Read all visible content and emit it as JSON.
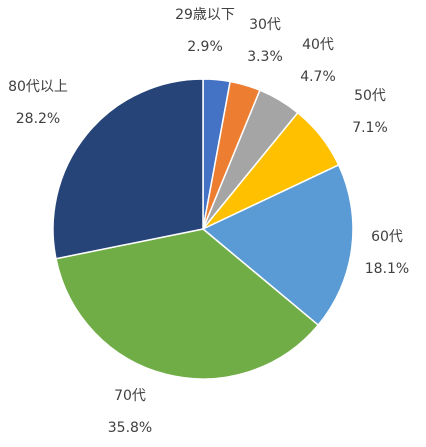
{
  "chart_data": {
    "type": "pie",
    "categories": [
      "29歳以下",
      "30代",
      "40代",
      "50代",
      "60代",
      "70代",
      "80代以上"
    ],
    "values": [
      2.9,
      3.3,
      4.7,
      7.1,
      18.1,
      35.8,
      28.2
    ],
    "value_labels": [
      "2.9%",
      "3.3%",
      "4.7%",
      "7.1%",
      "18.1%",
      "35.8%",
      "28.2%"
    ],
    "colors": [
      "#4472c4",
      "#ed7d31",
      "#a5a5a5",
      "#ffc000",
      "#5b9bd5",
      "#70ad47",
      "#264478"
    ]
  }
}
